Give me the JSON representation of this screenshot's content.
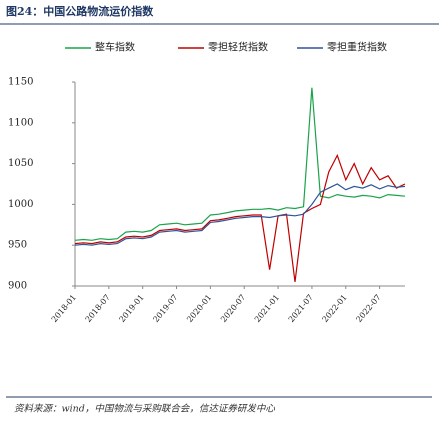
{
  "chart_data": {
    "type": "line",
    "title": "图24：中国公路物流运价指数",
    "source": "资料来源：wind，中国物流与采购联合会，信达证券研发中心",
    "categories": [
      "2018-01",
      null,
      null,
      null,
      "2018-07",
      null,
      null,
      null,
      "2019-01",
      null,
      null,
      null,
      "2019-07",
      null,
      null,
      null,
      "2020-01",
      null,
      null,
      null,
      "2020-07",
      null,
      null,
      null,
      "2021-01",
      null,
      null,
      null,
      "2021-07",
      null,
      null,
      null,
      "2022-01",
      null,
      null,
      null,
      "2022-07",
      null,
      null,
      null
    ],
    "series": [
      {
        "name": "整车指数",
        "color": "#1aa34a",
        "values": [
          956,
          957,
          956,
          958,
          957,
          958,
          966,
          967,
          966,
          968,
          975,
          976,
          977,
          975,
          976,
          977,
          987,
          988,
          990,
          992,
          993,
          994,
          994,
          995,
          993,
          996,
          995,
          997,
          1143,
          1010,
          1008,
          1012,
          1010,
          1009,
          1011,
          1010,
          1008,
          1012,
          1011,
          1010
        ]
      },
      {
        "name": "零担轻货指数",
        "color": "#c00000",
        "values": [
          952,
          953,
          952,
          954,
          953,
          954,
          960,
          961,
          960,
          962,
          968,
          969,
          970,
          968,
          969,
          970,
          980,
          981,
          983,
          985,
          986,
          987,
          987,
          920,
          986,
          988,
          905,
          989,
          995,
          1000,
          1040,
          1060,
          1030,
          1050,
          1025,
          1045,
          1030,
          1035,
          1020,
          1025
        ]
      },
      {
        "name": "零担重货指数",
        "color": "#2f5597",
        "values": [
          950,
          951,
          950,
          952,
          951,
          952,
          958,
          959,
          958,
          960,
          966,
          967,
          968,
          966,
          967,
          968,
          978,
          979,
          981,
          983,
          984,
          985,
          985,
          984,
          986,
          987,
          986,
          988,
          1000,
          1015,
          1020,
          1025,
          1018,
          1022,
          1020,
          1024,
          1019,
          1023,
          1021,
          1022
        ]
      }
    ],
    "ylim": [
      900,
      1150
    ],
    "yticks": [
      900,
      950,
      1000,
      1050,
      1100,
      1150
    ]
  }
}
